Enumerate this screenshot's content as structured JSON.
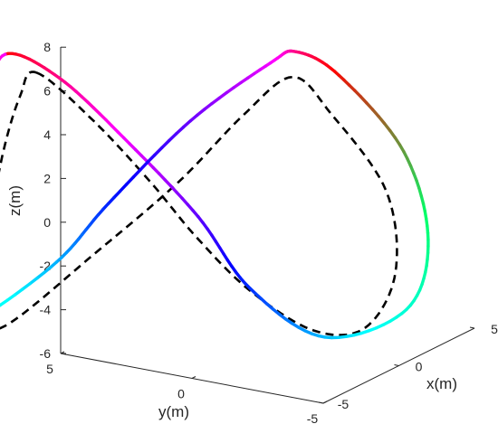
{
  "chart_data": {
    "type": "line",
    "projection": "3d",
    "xlabel": "x(m)",
    "ylabel": "y(m)",
    "zlabel": "z(m)",
    "xlim": [
      -5,
      5
    ],
    "ylim": [
      -5,
      5
    ],
    "zlim": [
      -6,
      8
    ],
    "x_ticks": [
      "-5",
      "0",
      "5"
    ],
    "y_ticks": [
      "5",
      "0",
      "-5"
    ],
    "z_ticks": [
      "8",
      "6",
      "4",
      "2",
      "0",
      "-2",
      "-4",
      "-6"
    ],
    "grid": false,
    "colors": {
      "reference": "#000000",
      "gradient": [
        "#ff0000",
        "#ff00ff",
        "#0000ff",
        "#00ffff",
        "#00ff66"
      ]
    },
    "series": [
      {
        "style": "solid-multicolor",
        "points": [
          [
            -3.2,
            5.2,
            7.6
          ],
          [
            -2.2,
            3.7,
            6.5
          ],
          [
            -0.7,
            1.9,
            3.4
          ],
          [
            0.7,
            0.1,
            0.0
          ],
          [
            1.7,
            -1.3,
            -3.3
          ],
          [
            3.0,
            -3.4,
            -5.5
          ],
          [
            4.4,
            -5.7,
            -4.2
          ],
          [
            4.8,
            -6.3,
            -1.0
          ],
          [
            4.4,
            -5.6,
            3.0
          ],
          [
            3.6,
            -3.6,
            6.3
          ],
          [
            3.2,
            -2.2,
            7.2
          ],
          [
            2.7,
            -1.5,
            6.7
          ],
          [
            0.7,
            0.4,
            4.3
          ],
          [
            -1.6,
            2.2,
            0.9
          ],
          [
            -3.1,
            3.3,
            -1.5
          ],
          [
            -4.9,
            5.3,
            -4.0
          ],
          [
            -5.2,
            6.0,
            -4.1
          ],
          [
            -4.4,
            6.3,
            -1.4
          ],
          [
            -4.2,
            6.1,
            2.2
          ],
          [
            -3.7,
            5.6,
            5.4
          ],
          [
            -3.2,
            5.2,
            7.6
          ]
        ]
      },
      {
        "style": "dashed-black",
        "points": [
          [
            -2.5,
            4.4,
            6.7
          ],
          [
            -1.5,
            2.8,
            4.5
          ],
          [
            -0.3,
            1.3,
            1.6
          ],
          [
            0.5,
            0.1,
            -0.8
          ],
          [
            1.5,
            -1.4,
            -3.3
          ],
          [
            2.8,
            -3.1,
            -5.2
          ],
          [
            3.6,
            -4.6,
            -5.0
          ],
          [
            4.2,
            -5.4,
            -2.5
          ],
          [
            4.1,
            -5.1,
            1.2
          ],
          [
            3.2,
            -3.5,
            4.7
          ],
          [
            2.6,
            -2.4,
            6.3
          ],
          [
            1.6,
            -1.1,
            4.6
          ],
          [
            0.1,
            0.5,
            1.7
          ],
          [
            -1.9,
            2.5,
            -1.3
          ],
          [
            -4.1,
            4.7,
            -4.4
          ],
          [
            -4.5,
            5.4,
            -3.8
          ],
          [
            -3.9,
            5.5,
            -0.9
          ],
          [
            -3.4,
            5.2,
            3.0
          ],
          [
            -2.9,
            4.8,
            5.7
          ],
          [
            -2.5,
            4.4,
            6.7
          ]
        ]
      }
    ]
  }
}
